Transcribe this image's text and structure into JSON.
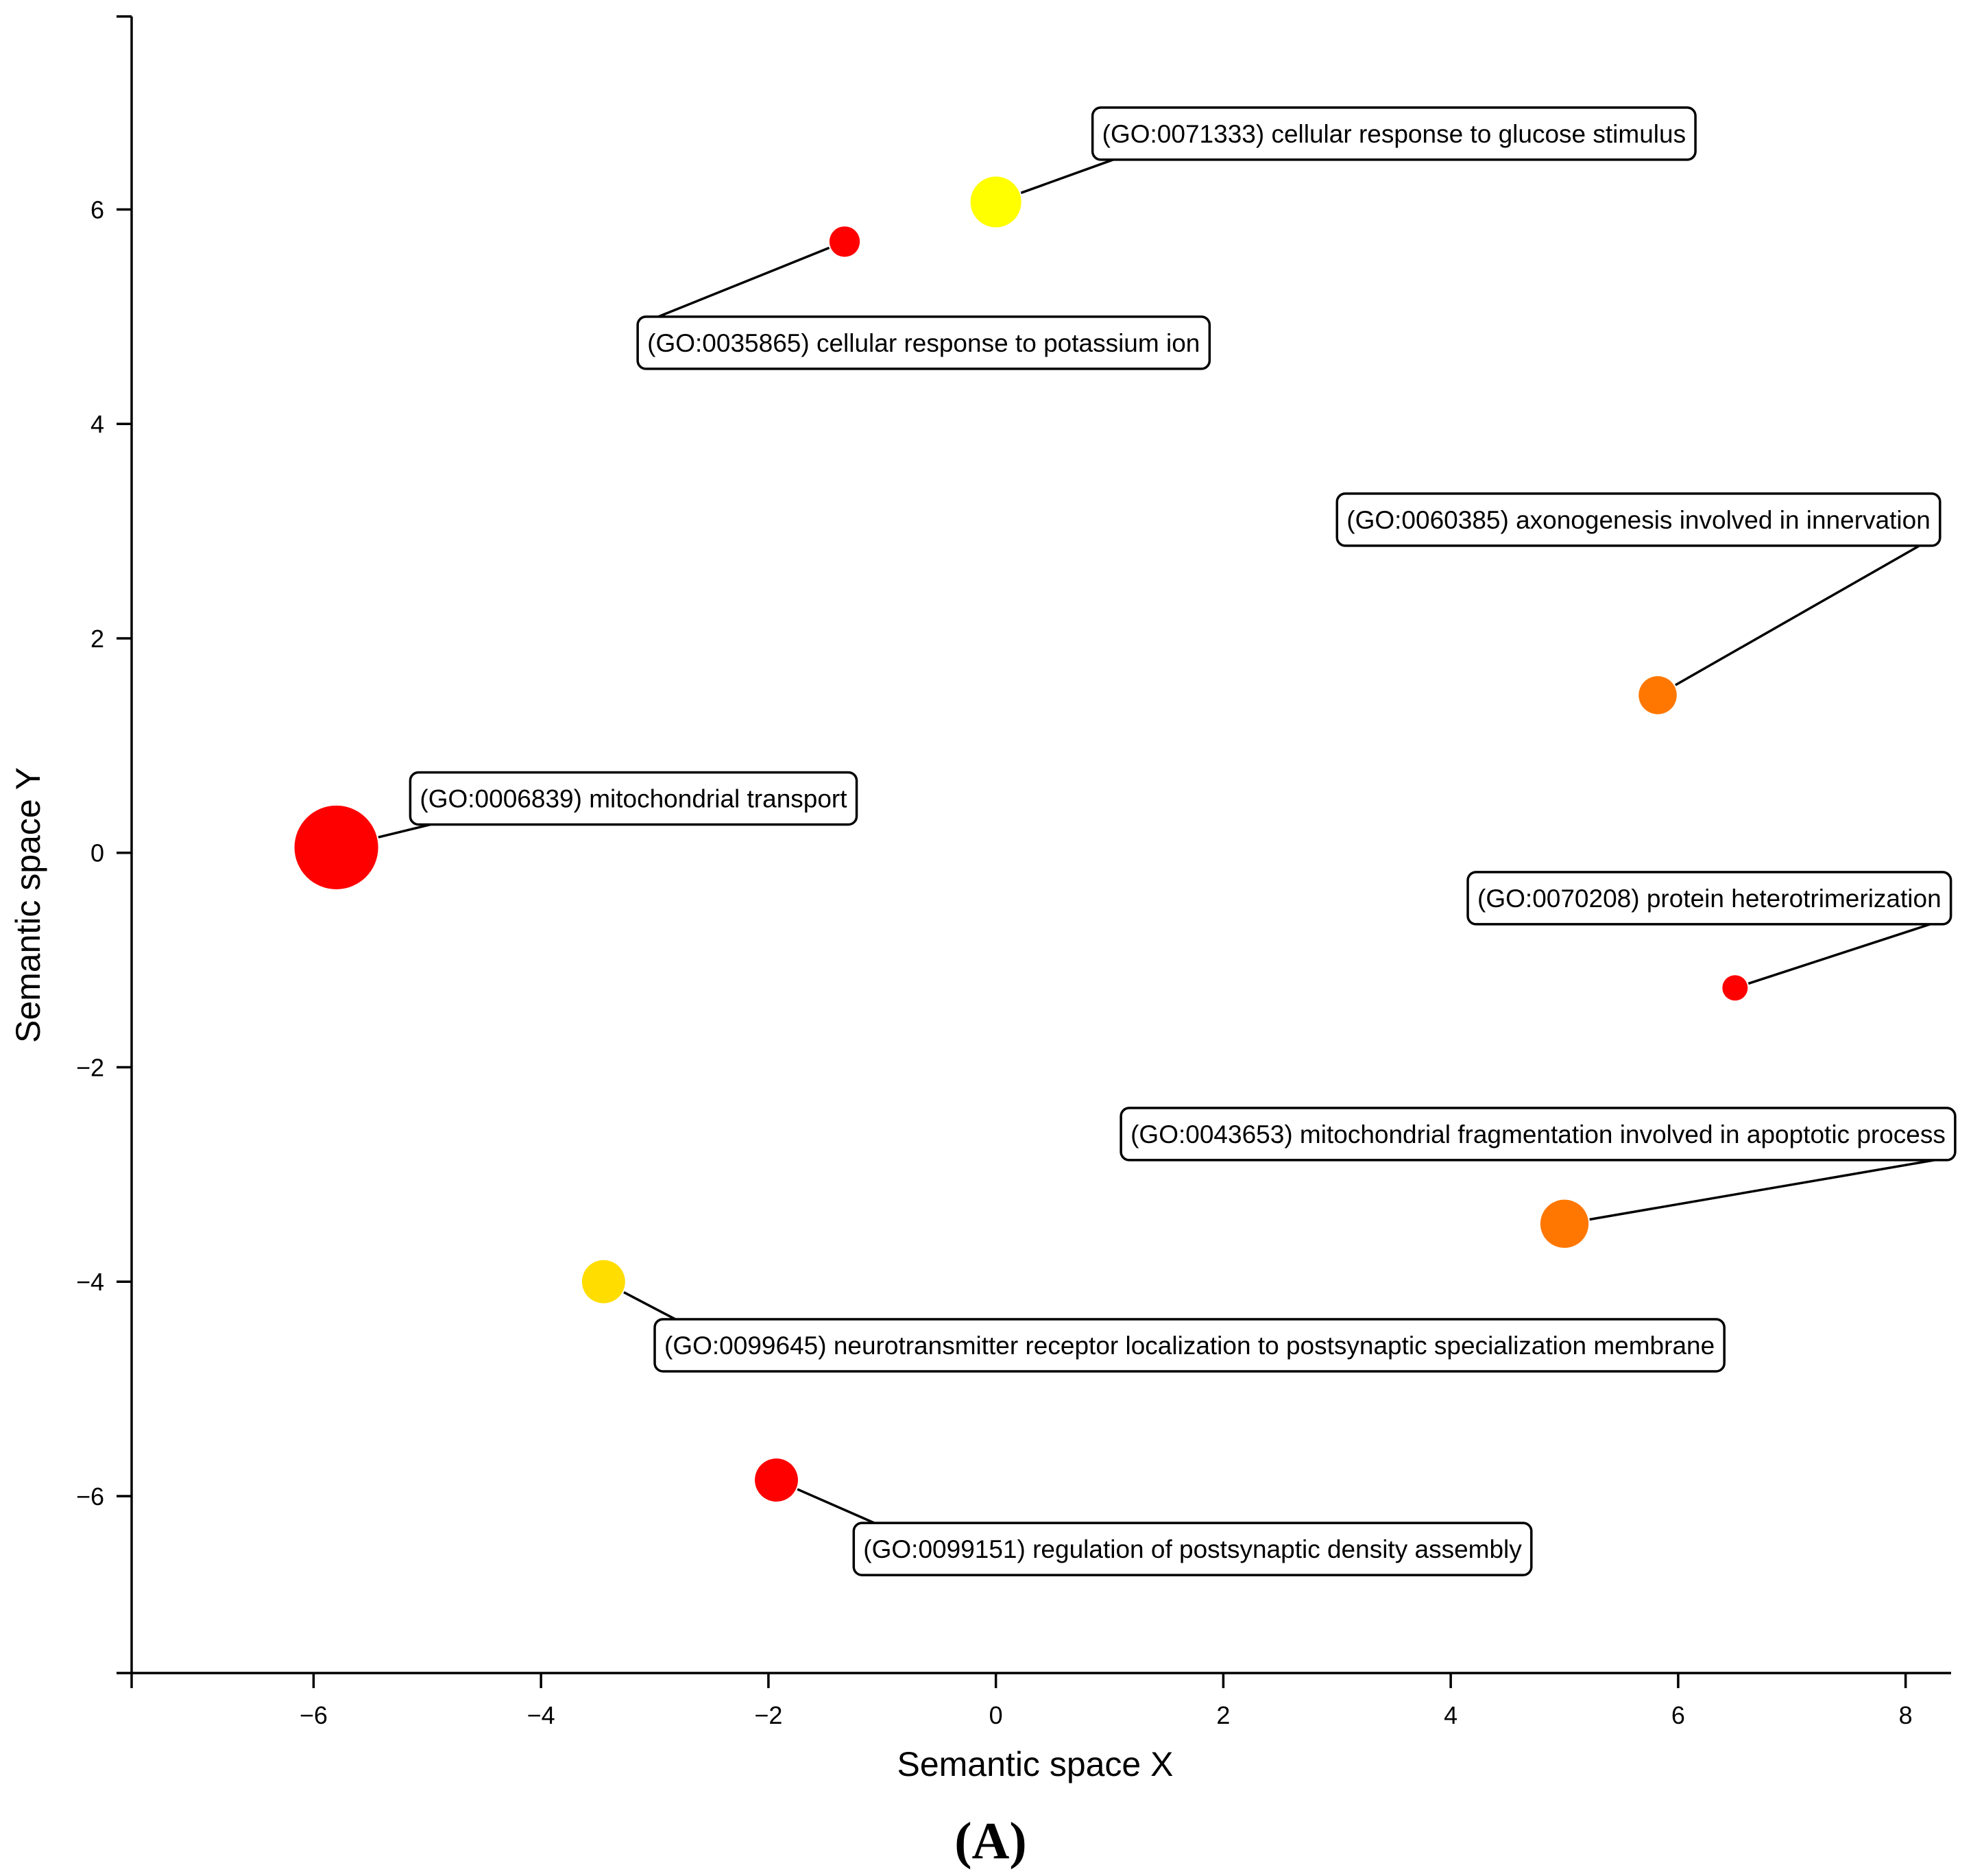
{
  "chart_data": {
    "type": "scatter",
    "title": "",
    "xlabel": "Semantic space X",
    "ylabel": "Semantic space Y",
    "xlim": [
      -7.6,
      8.4
    ],
    "ylim": [
      -7.65,
      7.8
    ],
    "xticks": [
      -6,
      -4,
      -2,
      0,
      2,
      4,
      6,
      8
    ],
    "yticks": [
      -6,
      -4,
      -2,
      0,
      2,
      4,
      6
    ],
    "xtick_labels": [
      "−6",
      "−4",
      "−2",
      "0",
      "2",
      "4",
      "6",
      "8"
    ],
    "ytick_labels": [
      "−6",
      "−4",
      "−2",
      "0",
      "2",
      "4",
      "6"
    ],
    "panel_label": "(A)",
    "points": [
      {
        "id": "GO:0071333",
        "label": "(GO:0071333) cellular response to glucose stimulus",
        "x": 0.0,
        "y": 6.07,
        "size": 2.0,
        "color": "#ffff00",
        "label_anchor": [
          0.85,
          6.95
        ]
      },
      {
        "id": "GO:0035865",
        "label": "(GO:0035865) cellular response to potassium ion",
        "x": -1.33,
        "y": 5.7,
        "size": 1.2,
        "color": "#ff0000",
        "label_anchor": [
          -3.15,
          5.0
        ]
      },
      {
        "id": "GO:0060385",
        "label": "(GO:0060385) axonogenesis involved in innervation",
        "x": 5.82,
        "y": 1.47,
        "size": 1.5,
        "color": "#ff7700",
        "label_anchor": [
          3.0,
          3.35
        ]
      },
      {
        "id": "GO:0006839",
        "label": "(GO:0006839) mitochondrial transport",
        "x": -5.8,
        "y": 0.05,
        "size": 3.3,
        "color": "#ff0000",
        "label_anchor": [
          -5.15,
          0.75
        ]
      },
      {
        "id": "GO:0070208",
        "label": "(GO:0070208) protein heterotrimerization",
        "x": 6.5,
        "y": -1.26,
        "size": 1.0,
        "color": "#ff0000",
        "label_anchor": [
          4.15,
          -0.18
        ]
      },
      {
        "id": "GO:0043653",
        "label": "(GO:0043653) mitochondrial fragmentation involved in apoptotic process",
        "x": 5.0,
        "y": -3.46,
        "size": 1.9,
        "color": "#ff7700",
        "label_anchor": [
          1.1,
          -2.38
        ]
      },
      {
        "id": "GO:0099645",
        "label": "(GO:0099645) neurotransmitter receptor localization to postsynaptic specialization membrane",
        "x": -3.45,
        "y": -4.0,
        "size": 1.7,
        "color": "#ffdd00",
        "label_anchor": [
          -3.0,
          -4.35
        ]
      },
      {
        "id": "GO:0099151",
        "label": "(GO:0099151) regulation of postsynaptic density assembly",
        "x": -1.93,
        "y": -5.85,
        "size": 1.7,
        "color": "#ff0000",
        "label_anchor": [
          -1.25,
          -6.25
        ]
      }
    ]
  }
}
